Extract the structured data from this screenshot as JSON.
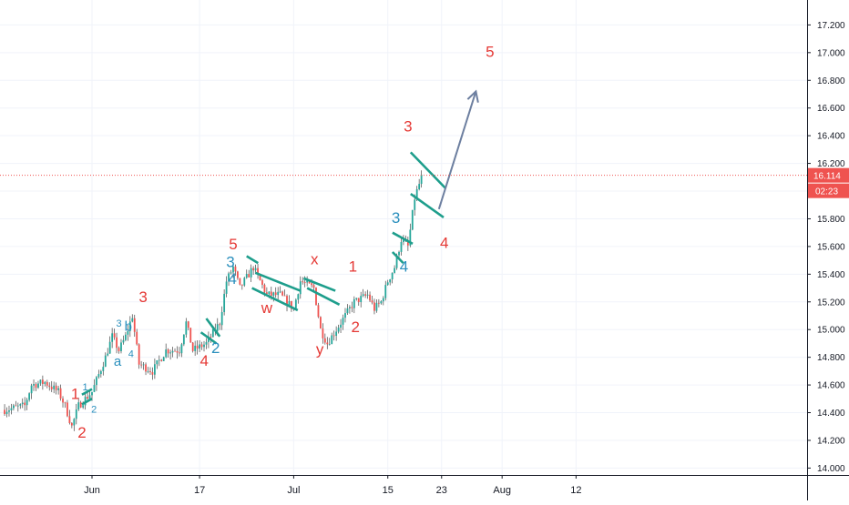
{
  "chart_data": {
    "type": "candlestick",
    "title": "",
    "ylim": [
      13.95,
      17.38
    ],
    "y_ticks": [
      "14.000",
      "14.200",
      "14.400",
      "14.600",
      "14.800",
      "15.000",
      "15.200",
      "15.400",
      "15.600",
      "15.800",
      "16.000",
      "16.200",
      "16.400",
      "16.600",
      "16.800",
      "17.000",
      "17.200"
    ],
    "x_ticks": [
      {
        "label": "Jun",
        "day": 0
      },
      {
        "label": "17",
        "day": 16
      },
      {
        "label": "Jul",
        "day": 30
      },
      {
        "label": "15",
        "day": 44
      },
      {
        "label": "23",
        "day": 52
      },
      {
        "label": "Aug",
        "day": 61
      },
      {
        "label": "12",
        "day": 72
      }
    ],
    "current_price": {
      "label": "16.114",
      "value": 16.114,
      "countdown": "02:23"
    },
    "price_path": [
      {
        "day": -13,
        "price": 14.42
      },
      {
        "day": -10,
        "price": 14.45
      },
      {
        "day": -9,
        "price": 14.6
      },
      {
        "day": -7,
        "price": 14.62
      },
      {
        "day": -5,
        "price": 14.55
      },
      {
        "day": -4,
        "price": 14.45
      },
      {
        "day": -3,
        "price": 14.3
      },
      {
        "day": -2,
        "price": 14.45
      },
      {
        "day": 0,
        "price": 14.55
      },
      {
        "day": 2,
        "price": 14.8
      },
      {
        "day": 3,
        "price": 14.95
      },
      {
        "day": 4,
        "price": 14.85
      },
      {
        "day": 5,
        "price": 14.95
      },
      {
        "day": 6,
        "price": 15.1
      },
      {
        "day": 7,
        "price": 14.75
      },
      {
        "day": 9,
        "price": 14.7
      },
      {
        "day": 11,
        "price": 14.85
      },
      {
        "day": 13,
        "price": 14.85
      },
      {
        "day": 14,
        "price": 15.05
      },
      {
        "day": 15,
        "price": 14.85
      },
      {
        "day": 17,
        "price": 14.9
      },
      {
        "day": 19,
        "price": 15.05
      },
      {
        "day": 20,
        "price": 15.35
      },
      {
        "day": 21,
        "price": 15.45
      },
      {
        "day": 22,
        "price": 15.3
      },
      {
        "day": 24,
        "price": 15.45
      },
      {
        "day": 26,
        "price": 15.25
      },
      {
        "day": 28,
        "price": 15.25
      },
      {
        "day": 30,
        "price": 15.15
      },
      {
        "day": 31,
        "price": 15.35
      },
      {
        "day": 33,
        "price": 15.3
      },
      {
        "day": 34,
        "price": 15.0
      },
      {
        "day": 35,
        "price": 14.9
      },
      {
        "day": 37,
        "price": 15.05
      },
      {
        "day": 39,
        "price": 15.2
      },
      {
        "day": 41,
        "price": 15.25
      },
      {
        "day": 42,
        "price": 15.15
      },
      {
        "day": 43,
        "price": 15.2
      },
      {
        "day": 44,
        "price": 15.35
      },
      {
        "day": 45,
        "price": 15.45
      },
      {
        "day": 46,
        "price": 15.65
      },
      {
        "day": 47,
        "price": 15.6
      },
      {
        "day": 48,
        "price": 15.95
      },
      {
        "day": 49,
        "price": 16.1
      }
    ],
    "wave_labels": [
      {
        "text": "1",
        "day": -2.5,
        "price": 14.5,
        "color": "red",
        "size": "lg"
      },
      {
        "text": "2",
        "day": -1.5,
        "price": 14.22,
        "color": "red",
        "size": "lg"
      },
      {
        "text": "1",
        "day": -1.0,
        "price": 14.56,
        "color": "blue",
        "size": "sm"
      },
      {
        "text": "2",
        "day": 0.3,
        "price": 14.4,
        "color": "blue",
        "size": "sm"
      },
      {
        "text": "a",
        "day": 3.8,
        "price": 14.74,
        "color": "blue",
        "size": "md"
      },
      {
        "text": "3",
        "day": 4.0,
        "price": 15.02,
        "color": "blue",
        "size": "sm"
      },
      {
        "text": "b",
        "day": 5.4,
        "price": 14.99,
        "color": "blue",
        "size": "md"
      },
      {
        "text": "4",
        "day": 5.8,
        "price": 14.8,
        "color": "blue",
        "size": "sm"
      },
      {
        "text": "3",
        "day": 7.6,
        "price": 15.2,
        "color": "red",
        "size": "lg"
      },
      {
        "text": "4",
        "day": 16.7,
        "price": 14.74,
        "color": "red",
        "size": "lg"
      },
      {
        "text": "2",
        "day": 18.4,
        "price": 14.83,
        "color": "blue",
        "size": "lg"
      },
      {
        "text": "3",
        "day": 20.6,
        "price": 15.45,
        "color": "blue",
        "size": "lg"
      },
      {
        "text": "4",
        "day": 20.9,
        "price": 15.33,
        "color": "blue",
        "size": "lg"
      },
      {
        "text": "5",
        "day": 21.0,
        "price": 15.58,
        "color": "red",
        "size": "lg"
      },
      {
        "text": "w",
        "day": 26.0,
        "price": 15.12,
        "color": "red",
        "size": "lg"
      },
      {
        "text": "x",
        "day": 33.1,
        "price": 15.47,
        "color": "red",
        "size": "lg"
      },
      {
        "text": "y",
        "day": 33.9,
        "price": 14.82,
        "color": "red",
        "size": "lg"
      },
      {
        "text": "1",
        "day": 38.8,
        "price": 15.42,
        "color": "red",
        "size": "lg"
      },
      {
        "text": "2",
        "day": 39.2,
        "price": 14.98,
        "color": "red",
        "size": "lg"
      },
      {
        "text": "3",
        "day": 45.2,
        "price": 15.77,
        "color": "blue",
        "size": "lg"
      },
      {
        "text": "4",
        "day": 46.4,
        "price": 15.42,
        "color": "blue",
        "size": "lg"
      },
      {
        "text": "3",
        "day": 47.0,
        "price": 16.43,
        "color": "red",
        "size": "lg"
      },
      {
        "text": "4",
        "day": 52.4,
        "price": 15.59,
        "color": "red",
        "size": "lg"
      },
      {
        "text": "5",
        "day": 59.2,
        "price": 16.97,
        "color": "red",
        "size": "lg"
      }
    ],
    "channel_lines": [
      {
        "from": [
          -1.5,
          14.53
        ],
        "to": [
          0.0,
          14.57
        ]
      },
      {
        "from": [
          -1.5,
          14.46
        ],
        "to": [
          0.0,
          14.5
        ]
      },
      {
        "from": [
          17.0,
          15.08
        ],
        "to": [
          19.0,
          14.95
        ]
      },
      {
        "from": [
          16.2,
          14.98
        ],
        "to": [
          18.5,
          14.9
        ]
      },
      {
        "from": [
          23.0,
          15.53
        ],
        "to": [
          24.7,
          15.48
        ]
      },
      {
        "from": [
          24.3,
          15.41
        ],
        "to": [
          31.0,
          15.28
        ]
      },
      {
        "from": [
          23.8,
          15.3
        ],
        "to": [
          30.6,
          15.14
        ]
      },
      {
        "from": [
          31.5,
          15.37
        ],
        "to": [
          36.2,
          15.28
        ]
      },
      {
        "from": [
          32.0,
          15.3
        ],
        "to": [
          36.8,
          15.18
        ]
      },
      {
        "from": [
          44.7,
          15.7
        ],
        "to": [
          47.7,
          15.62
        ]
      },
      {
        "from": [
          44.7,
          15.56
        ],
        "to": [
          46.3,
          15.48
        ]
      },
      {
        "from": [
          47.4,
          15.98
        ],
        "to": [
          52.3,
          15.81
        ]
      },
      {
        "from": [
          47.4,
          16.28
        ],
        "to": [
          52.6,
          16.02
        ]
      }
    ],
    "projection_arrow": {
      "from": [
        51.6,
        15.87
      ],
      "to": [
        57.1,
        16.72
      ]
    }
  }
}
